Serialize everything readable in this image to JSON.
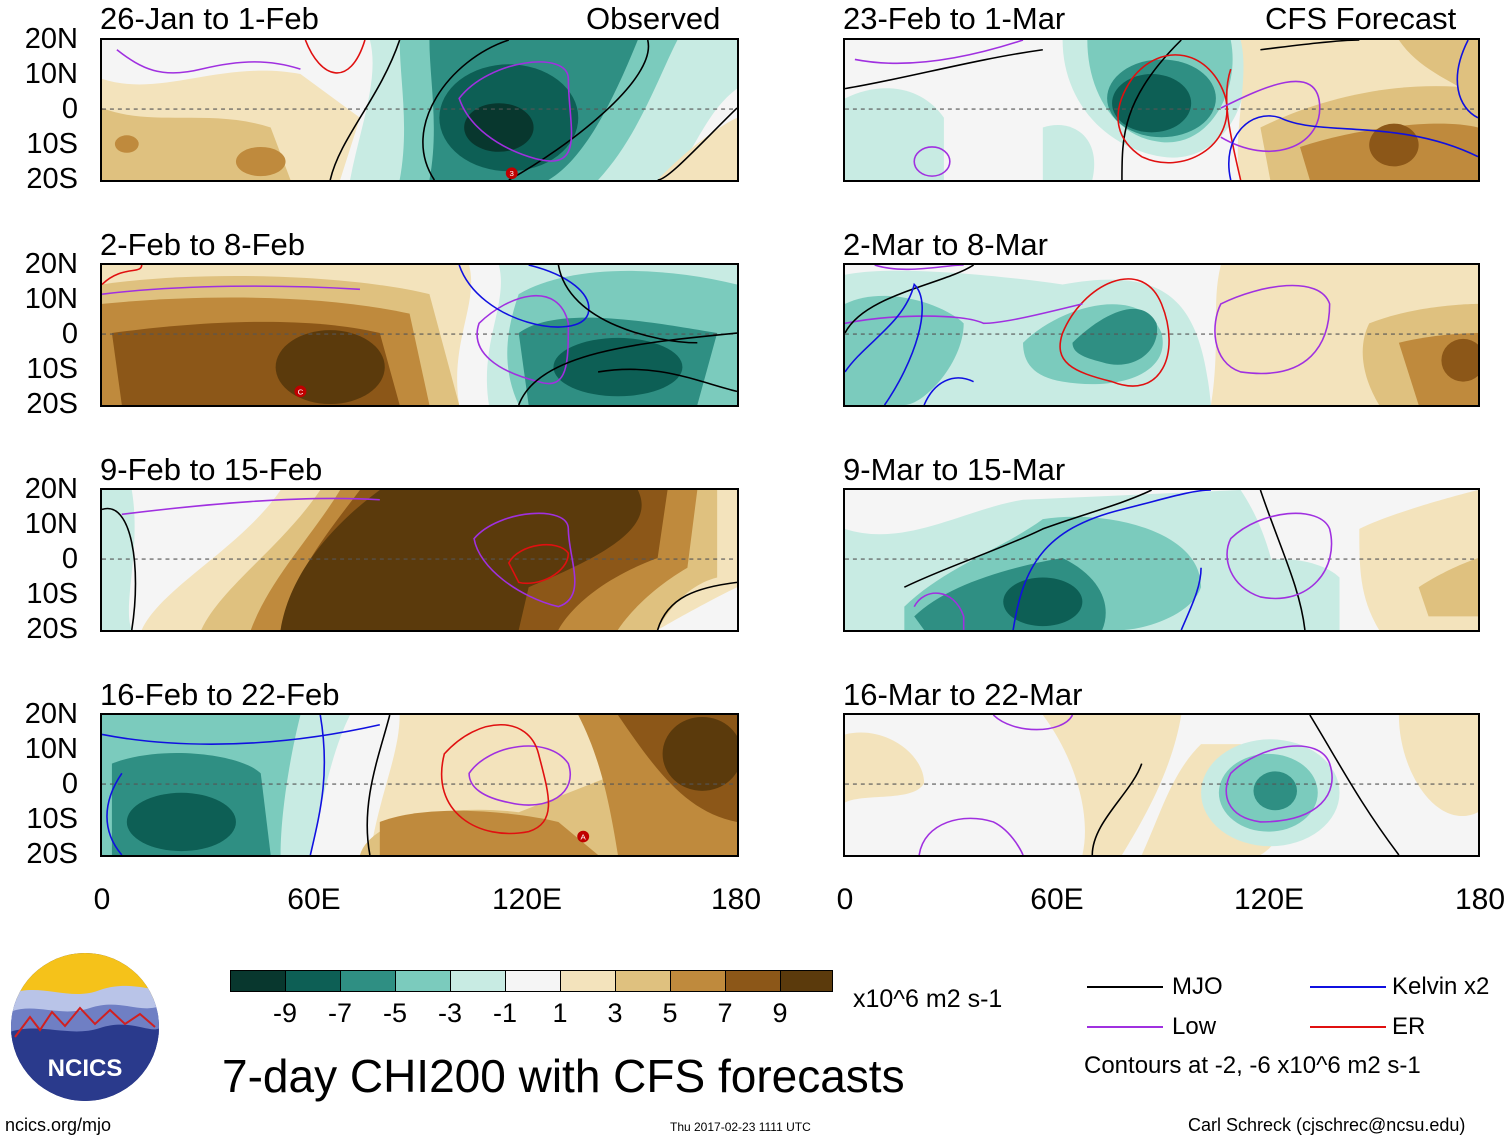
{
  "header": {
    "left_label": "Observed",
    "right_label": "CFS Forecast"
  },
  "axes": {
    "y_ticks": [
      "20N",
      "10N",
      "0",
      "10S",
      "20S"
    ],
    "x_ticks": [
      "0",
      "60E",
      "120E",
      "180"
    ]
  },
  "panels_observed": [
    {
      "title": "26-Jan to 1-Feb"
    },
    {
      "title": "2-Feb to 8-Feb"
    },
    {
      "title": "9-Feb to 15-Feb"
    },
    {
      "title": "16-Feb to 22-Feb"
    }
  ],
  "panels_forecast": [
    {
      "title": "23-Feb to 1-Mar"
    },
    {
      "title": "2-Mar to 8-Mar"
    },
    {
      "title": "9-Mar to 15-Mar"
    },
    {
      "title": "16-Mar to 22-Mar"
    }
  ],
  "storm_markers": [
    "3",
    "C",
    "A"
  ],
  "colorbar": {
    "labels": [
      "-9",
      "-7",
      "-5",
      "-3",
      "-1",
      "1",
      "3",
      "5",
      "7",
      "9"
    ],
    "colors": [
      "#08372e",
      "#0d5f55",
      "#2f8f83",
      "#7bcbbd",
      "#c8ebe3",
      "#f5f5f5",
      "#f3e3bc",
      "#dfc17f",
      "#bf8a3d",
      "#8c5718",
      "#5b3a0c"
    ],
    "units": "x10^6 m2 s-1"
  },
  "legend": {
    "mjo": "MJO",
    "kelvin": "Kelvin x2",
    "low": "Low",
    "er": "ER",
    "contours_note": "Contours at -2, -6 x10^6 m2 s-1",
    "colors": {
      "mjo": "#000000",
      "kelvin": "#1010e0",
      "low": "#a030e0",
      "er": "#e01010"
    }
  },
  "footer": {
    "title": "7-day CHI200 with CFS forecasts",
    "logo_text": "NCICS",
    "website": "ncics.org/mjo",
    "timestamp": "Thu 2017-02-23 1111 UTC",
    "author": "Carl Schreck (cjschrec@ncsu.edu)"
  }
}
